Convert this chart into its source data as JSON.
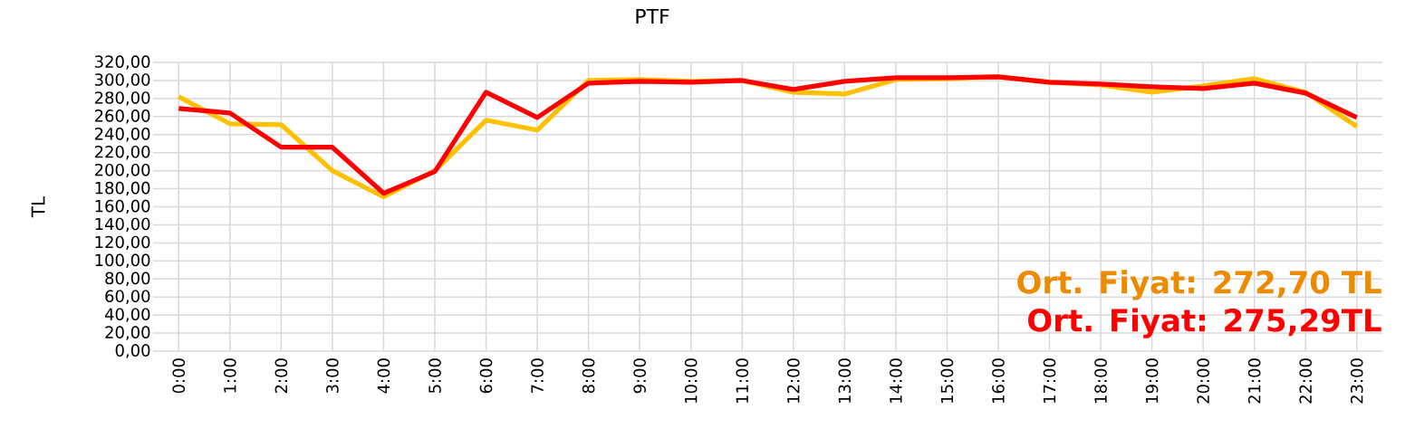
{
  "chart_data": {
    "type": "line",
    "title": "PTF",
    "ylabel": "TL",
    "categories": [
      "0:00",
      "1:00",
      "2:00",
      "3:00",
      "4:00",
      "5:00",
      "6:00",
      "7:00",
      "8:00",
      "9:00",
      "10:00",
      "11:00",
      "12:00",
      "13:00",
      "14:00",
      "15:00",
      "16:00",
      "17:00",
      "18:00",
      "19:00",
      "20:00",
      "21:00",
      "22:00",
      "23:00"
    ],
    "series": [
      {
        "color": "#ffc000",
        "values": [
          282,
          252,
          251,
          200,
          171,
          200,
          256,
          245,
          300,
          301,
          299,
          300,
          287,
          285,
          301,
          302,
          304,
          298,
          295,
          287,
          294,
          302,
          287,
          249
        ]
      },
      {
        "color": "#ff0000",
        "values": [
          269,
          264,
          226,
          226,
          175,
          199,
          287,
          259,
          297,
          299,
          298,
          300,
          290,
          299,
          303,
          303,
          304,
          298,
          296,
          293,
          291,
          297,
          286,
          259
        ]
      }
    ],
    "ylim": [
      0,
      320
    ],
    "yticks": [
      {
        "value": 0,
        "label": "0,00"
      },
      {
        "value": 20,
        "label": "20,00"
      },
      {
        "value": 40,
        "label": "40,00"
      },
      {
        "value": 60,
        "label": "60,00"
      },
      {
        "value": 80,
        "label": "80,00"
      },
      {
        "value": 100,
        "label": "100,00"
      },
      {
        "value": 120,
        "label": "120,00"
      },
      {
        "value": 140,
        "label": "140,00"
      },
      {
        "value": 160,
        "label": "160,00"
      },
      {
        "value": 180,
        "label": "180,00"
      },
      {
        "value": 200,
        "label": "200,00"
      },
      {
        "value": 220,
        "label": "220,00"
      },
      {
        "value": 240,
        "label": "240,00"
      },
      {
        "value": 260,
        "label": "260,00"
      },
      {
        "value": 280,
        "label": "280,00"
      },
      {
        "value": 300,
        "label": "300,00"
      },
      {
        "value": 320,
        "label": "320,00"
      }
    ],
    "annotations": [
      "Ort. Fiyat: 272,70 TL",
      "Ort. Fiyat:  275,29TL"
    ],
    "grid": true,
    "marker": "none",
    "line_style": "solid"
  }
}
